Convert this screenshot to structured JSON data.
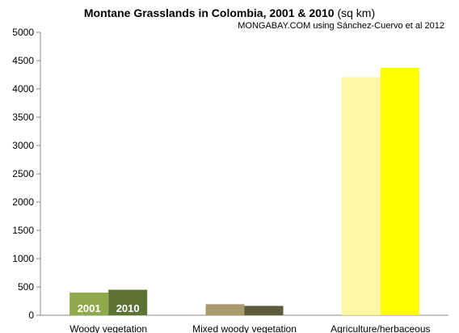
{
  "chart_data": {
    "type": "bar",
    "title_bold": "Montane Grasslands in Colombia, 2001 & 2010",
    "title_units": "(sq km)",
    "source": "MONGABAY.COM using Sánchez-Cuervo et al 2012",
    "categories": [
      "Woody vegetation",
      "Mixed woody vegetation",
      "Agriculture/herbaceous"
    ],
    "series": [
      {
        "name": "2001",
        "values": [
          400,
          195,
          4210
        ]
      },
      {
        "name": "2010",
        "values": [
          450,
          165,
          4370
        ]
      }
    ],
    "colors": {
      "2001": [
        "#8faa4b",
        "#a89c6c",
        "#fff6a8"
      ],
      "2010": [
        "#5c7334",
        "#5f5a3c",
        "#ffff00"
      ]
    },
    "ylim": [
      0,
      5000
    ],
    "yticks": [
      0,
      500,
      1000,
      1500,
      2000,
      2500,
      3000,
      3500,
      4000,
      4500,
      5000
    ],
    "grid": false,
    "series_label_color": "#ffffff"
  }
}
